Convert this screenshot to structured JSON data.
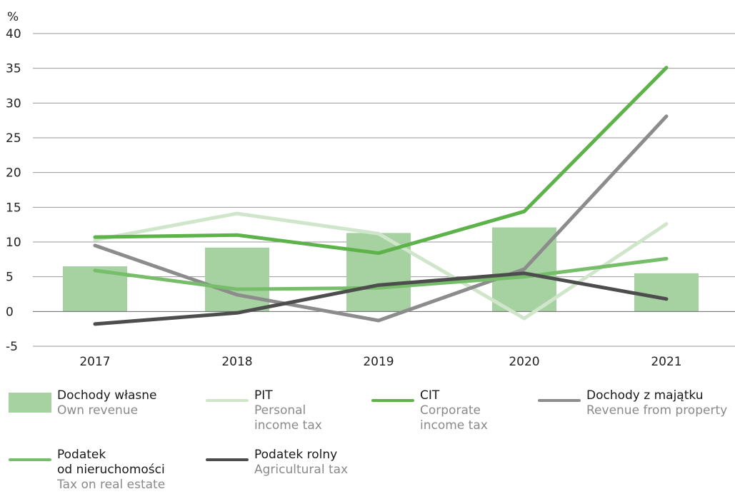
{
  "chart_data": {
    "type": "bar",
    "ylabel": "%",
    "ylim": [
      -5,
      40
    ],
    "yticks": [
      -5,
      0,
      5,
      10,
      15,
      20,
      25,
      30,
      35,
      40
    ],
    "categories": [
      "2017",
      "2018",
      "2019",
      "2020",
      "2021"
    ],
    "grid": true,
    "legend_position": "bottom",
    "series": [
      {
        "name_pl": "Dochody własne",
        "name_en": "Own revenue",
        "kind": "bar",
        "color": "#a6d1a0",
        "values": [
          6.5,
          9.2,
          11.3,
          12.1,
          5.5
        ]
      },
      {
        "name_pl": "PIT",
        "name_en": "Personal\nincome tax",
        "kind": "line",
        "color": "#cfe6cb",
        "values": [
          10.3,
          14.1,
          11.2,
          -1.0,
          12.6
        ]
      },
      {
        "name_pl": "CIT",
        "name_en": "Corporate\nincome tax",
        "kind": "line",
        "color": "#5db24a",
        "values": [
          10.7,
          11.0,
          8.4,
          14.4,
          35.1
        ]
      },
      {
        "name_pl": "Dochody z majątku",
        "name_en": "Revenue from property",
        "kind": "line",
        "color": "#8c8c8c",
        "values": [
          9.5,
          2.4,
          -1.3,
          6.1,
          28.1
        ]
      },
      {
        "name_pl": "Podatek\nod nieruchomości",
        "name_en": "Tax on real estate",
        "kind": "line",
        "color": "#76be6a",
        "values": [
          5.9,
          3.2,
          3.4,
          5.0,
          7.6
        ]
      },
      {
        "name_pl": "Podatek rolny",
        "name_en": "Agricultural tax",
        "kind": "line",
        "color": "#4d4d4d",
        "values": [
          -1.8,
          -0.2,
          3.8,
          5.5,
          1.8
        ]
      }
    ]
  }
}
